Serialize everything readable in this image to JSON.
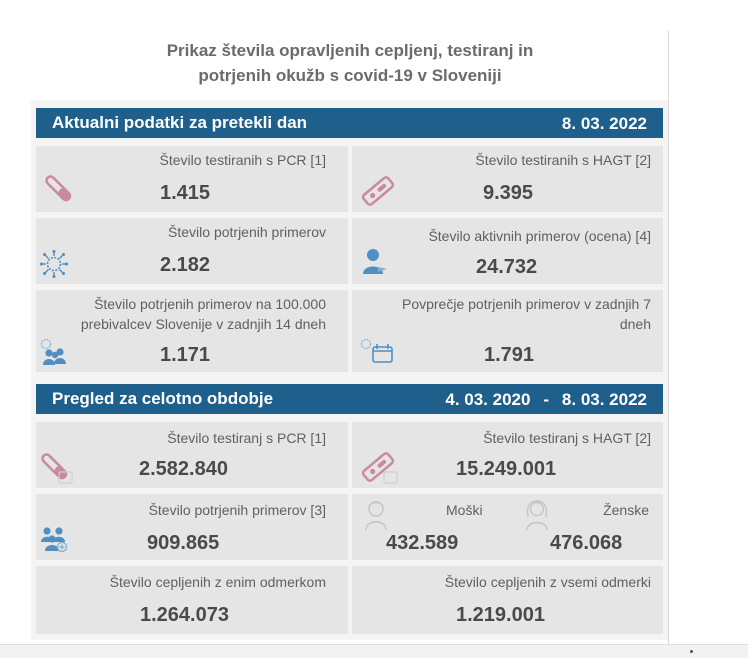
{
  "title_line1": "Prikaz števila opravljenih cepljenj, testiranj in",
  "title_line2": "potrjenih okužb s covid-19 v Sloveniji",
  "daily": {
    "heading": "Aktualni podatki za pretekli dan",
    "date": "8. 03. 2022",
    "pcr_label": "Število testiranih s PCR [1]",
    "pcr_value": "1.415",
    "hagt_label": "Število testiranih s HAGT [2]",
    "hagt_value": "9.395",
    "confirmed_label": "Število potrjenih primerov",
    "confirmed_value": "2.182",
    "active_label": "Število aktivnih primerov (ocena) [4]",
    "active_value": "24.732",
    "per100k_label1": "Število potrjenih primerov na 100.000",
    "per100k_label2": "prebivalcev Slovenije v zadnjih 14 dneh",
    "per100k_value": "1.171",
    "avg7_label1": "Povprečje potrjenih primerov v zadnjih 7",
    "avg7_label2": "dneh",
    "avg7_value": "1.791"
  },
  "period": {
    "heading": "Pregled za celotno obdobje",
    "date_from": "4. 03. 2020",
    "dash": "-",
    "date_to": "8. 03. 2022",
    "pcr_label": "Število testiranj s PCR [1]",
    "pcr_value": "2.582.840",
    "hagt_label": "Število testiranj s HAGT [2]",
    "hagt_value": "15.249.001",
    "confirmed_label": "Število potrjenih primerov [3]",
    "confirmed_value": "909.865",
    "male_label": "Moški",
    "male_value": "432.589",
    "female_label": "Ženske",
    "female_value": "476.068",
    "one_dose_label": "Število cepljenih z enim odmerkom",
    "one_dose_value": "1.264.073",
    "all_doses_label": "Število cepljenih z vsemi odmerki",
    "all_doses_value": "1.219.001"
  },
  "colors": {
    "bar": "#1e5f8c",
    "card": "#e5e5e5",
    "icon_pink": "#c98aa0",
    "icon_blue": "#4f8fc3"
  }
}
